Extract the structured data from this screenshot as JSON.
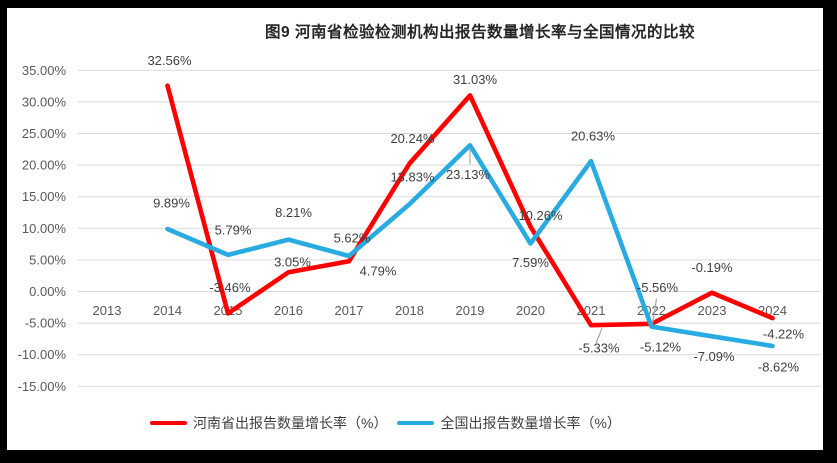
{
  "chart_data": {
    "type": "line",
    "title": "图9  河南省检验检测机构出报告数量增长率与全国情况的比较",
    "categories": [
      "2013",
      "2014",
      "2015",
      "2016",
      "2017",
      "2018",
      "2019",
      "2020",
      "2021",
      "2022",
      "2023",
      "2024"
    ],
    "series": [
      {
        "name": "河南省出报告数量增长率（%）",
        "color": "#FF0000",
        "values": [
          null,
          32.56,
          -3.46,
          3.05,
          4.79,
          20.24,
          31.03,
          10.26,
          -5.33,
          -5.12,
          -0.19,
          -4.22
        ],
        "labels": [
          "",
          "32.56%",
          "-3.46%",
          "3.05%",
          "4.79%",
          "20.24%",
          "31.03%",
          "10.26%",
          "-5.33%",
          "-5.12%",
          "-0.19%",
          "-4.22%"
        ]
      },
      {
        "name": "全国出报告数量增长率（%）",
        "color": "#29ABE2",
        "values": [
          null,
          9.89,
          5.79,
          8.21,
          5.62,
          13.83,
          23.13,
          7.59,
          20.63,
          -5.56,
          -7.09,
          -8.62
        ],
        "labels": [
          "",
          "9.89%",
          "5.79%",
          "8.21%",
          "5.62%",
          "13.83%",
          "23.13%",
          "7.59%",
          "20.63%",
          "-5.56%",
          "-7.09%",
          "-8.62%"
        ]
      }
    ],
    "ylim": [
      -15,
      35
    ],
    "ytick_step": 5,
    "ytick_labels": [
      "35.00%",
      "30.00%",
      "25.00%",
      "20.00%",
      "15.00%",
      "10.00%",
      "5.00%",
      "0.00%",
      "-5.00%",
      "-10.00%",
      "-15.00%"
    ],
    "grid": true,
    "data_labels": true,
    "legend_position": "bottom",
    "colors": {
      "gridline": "#D9D9D9",
      "axis_text": "#595959",
      "label_text": "#404040",
      "leader_line": "#A6A6A6",
      "frame": "#000000",
      "background": "#FFFFFF"
    }
  }
}
